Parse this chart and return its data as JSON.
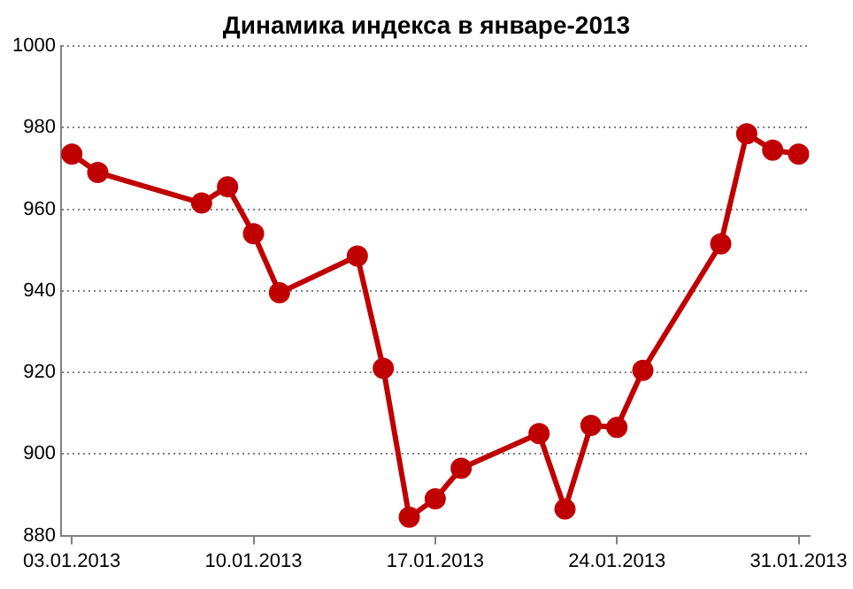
{
  "chart_data": {
    "type": "line",
    "title": "Динамика индекса в январе-2013",
    "x": [
      "2013-01-03",
      "2013-01-04",
      "2013-01-08",
      "2013-01-09",
      "2013-01-10",
      "2013-01-11",
      "2013-01-14",
      "2013-01-15",
      "2013-01-16",
      "2013-01-17",
      "2013-01-18",
      "2013-01-21",
      "2013-01-22",
      "2013-01-23",
      "2013-01-24",
      "2013-01-25",
      "2013-01-28",
      "2013-01-29",
      "2013-01-30",
      "2013-01-31"
    ],
    "series": [
      {
        "color": "#c00000",
        "values": [
          973.5,
          969,
          961.5,
          965.5,
          954,
          939.5,
          948.5,
          921,
          884.5,
          889,
          896.5,
          905,
          886.5,
          907,
          906.5,
          920.5,
          951.5,
          978.5,
          974.5,
          973.5
        ]
      }
    ],
    "xlim": [
      "2013-01-02T14:00",
      "2013-01-31T10:00"
    ],
    "xticks": [
      {
        "value": "2013-01-03",
        "label": "03.01.2013"
      },
      {
        "value": "2013-01-10",
        "label": "10.01.2013"
      },
      {
        "value": "2013-01-17",
        "label": "17.01.2013"
      },
      {
        "value": "2013-01-24",
        "label": "24.01.2013"
      },
      {
        "value": "2013-01-31",
        "label": "31.01.2013"
      }
    ],
    "ylim": [
      880,
      1000
    ],
    "yticks": [
      880,
      900,
      920,
      940,
      960,
      980,
      1000
    ],
    "grid": "y",
    "legend": false,
    "marker": "circle",
    "line_style": "solid"
  }
}
